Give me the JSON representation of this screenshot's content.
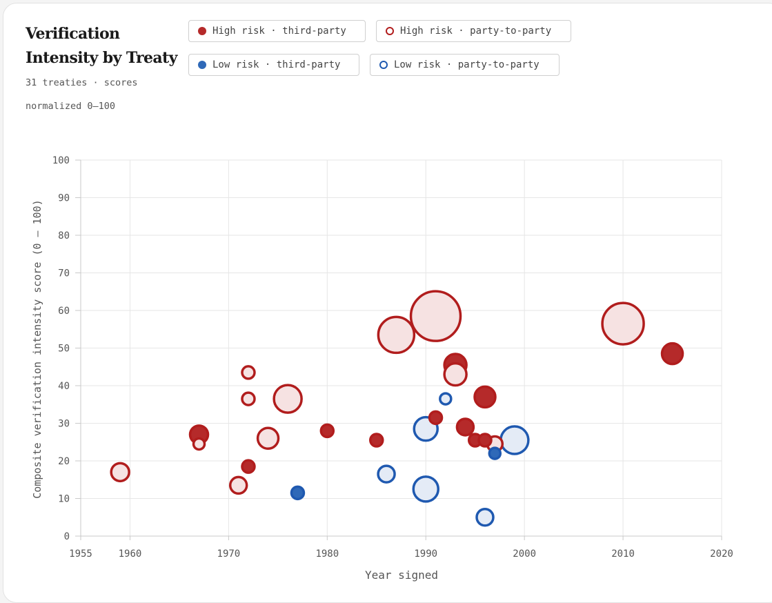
{
  "header": {
    "title": "Verification Intensity by Treaty",
    "subtitle": "31 treaties · scores normalized 0–100"
  },
  "legend": [
    {
      "label": "High risk · third-party",
      "color": "#b52a2a",
      "filled": true
    },
    {
      "label": "High risk · party-to-party",
      "color": "#b52a2a",
      "filled": false
    },
    {
      "label": "Low risk · third-party",
      "color": "#2f69b8",
      "filled": true
    },
    {
      "label": "Low risk · party-to-party",
      "color": "#2f69b8",
      "filled": false
    }
  ],
  "colors": {
    "high_stroke": "#b11d1d",
    "high_fill": "#b52a2a",
    "high_hollow": "#f6e2e2",
    "low_stroke": "#1f59b0",
    "low_fill": "#2f69b8",
    "low_hollow": "#e4ebf6",
    "grid": "#e6e6e6",
    "axis": "#c9c9c9",
    "tick_text": "#555555"
  },
  "chart_data": {
    "type": "scatter",
    "xlabel": "Year signed",
    "ylabel": "Composite verification intensity score (0 – 100)",
    "xlim": [
      1955,
      2020
    ],
    "ylim": [
      0,
      100
    ],
    "xticks": [
      1955,
      1960,
      1970,
      1980,
      1990,
      2000,
      2010,
      2020
    ],
    "yticks": [
      0,
      10,
      20,
      30,
      40,
      50,
      60,
      70,
      80,
      90,
      100
    ],
    "grid": true,
    "points": [
      {
        "x": 1959,
        "y": 17,
        "r": 13,
        "series": "High risk · party-to-party"
      },
      {
        "x": 1967,
        "y": 27,
        "r": 13,
        "series": "High risk · third-party"
      },
      {
        "x": 1967,
        "y": 24.5,
        "r": 8,
        "series": "High risk · party-to-party"
      },
      {
        "x": 1971,
        "y": 13.5,
        "r": 12,
        "series": "High risk · party-to-party"
      },
      {
        "x": 1972,
        "y": 43.5,
        "r": 9,
        "series": "High risk · party-to-party"
      },
      {
        "x": 1972,
        "y": 36.5,
        "r": 9,
        "series": "High risk · party-to-party"
      },
      {
        "x": 1972,
        "y": 18.5,
        "r": 9,
        "series": "High risk · third-party"
      },
      {
        "x": 1974,
        "y": 26,
        "r": 15,
        "series": "High risk · party-to-party"
      },
      {
        "x": 1976,
        "y": 36.5,
        "r": 20,
        "series": "High risk · party-to-party"
      },
      {
        "x": 1977,
        "y": 11.5,
        "r": 9,
        "series": "Low risk · third-party"
      },
      {
        "x": 1980,
        "y": 28,
        "r": 9,
        "series": "High risk · third-party"
      },
      {
        "x": 1985,
        "y": 25.5,
        "r": 9,
        "series": "High risk · third-party"
      },
      {
        "x": 1986,
        "y": 16.5,
        "r": 12,
        "series": "Low risk · party-to-party"
      },
      {
        "x": 1987,
        "y": 53.5,
        "r": 26,
        "series": "High risk · party-to-party"
      },
      {
        "x": 1990,
        "y": 28.5,
        "r": 17,
        "series": "Low risk · party-to-party"
      },
      {
        "x": 1990,
        "y": 12.5,
        "r": 18,
        "series": "Low risk · party-to-party"
      },
      {
        "x": 1991,
        "y": 31.5,
        "r": 9,
        "series": "High risk · third-party"
      },
      {
        "x": 1991,
        "y": 58.5,
        "r": 36,
        "series": "High risk · party-to-party"
      },
      {
        "x": 1992,
        "y": 36.5,
        "r": 8,
        "series": "Low risk · party-to-party"
      },
      {
        "x": 1993,
        "y": 45.5,
        "r": 16,
        "series": "High risk · third-party"
      },
      {
        "x": 1993,
        "y": 43,
        "r": 16,
        "series": "High risk · party-to-party"
      },
      {
        "x": 1994,
        "y": 29,
        "r": 12,
        "series": "High risk · third-party"
      },
      {
        "x": 1995,
        "y": 25.5,
        "r": 9,
        "series": "High risk · third-party"
      },
      {
        "x": 1996,
        "y": 37,
        "r": 15,
        "series": "High risk · third-party"
      },
      {
        "x": 1996,
        "y": 25.5,
        "r": 9,
        "series": "High risk · third-party"
      },
      {
        "x": 1996,
        "y": 5,
        "r": 12,
        "series": "Low risk · party-to-party"
      },
      {
        "x": 1997,
        "y": 24.5,
        "r": 11,
        "series": "High risk · party-to-party"
      },
      {
        "x": 1997,
        "y": 22,
        "r": 8,
        "series": "Low risk · third-party"
      },
      {
        "x": 1999,
        "y": 25.5,
        "r": 20,
        "series": "Low risk · party-to-party"
      },
      {
        "x": 2010,
        "y": 56.5,
        "r": 30,
        "series": "High risk · party-to-party"
      },
      {
        "x": 2015,
        "y": 48.5,
        "r": 15,
        "series": "High risk · third-party"
      }
    ]
  }
}
